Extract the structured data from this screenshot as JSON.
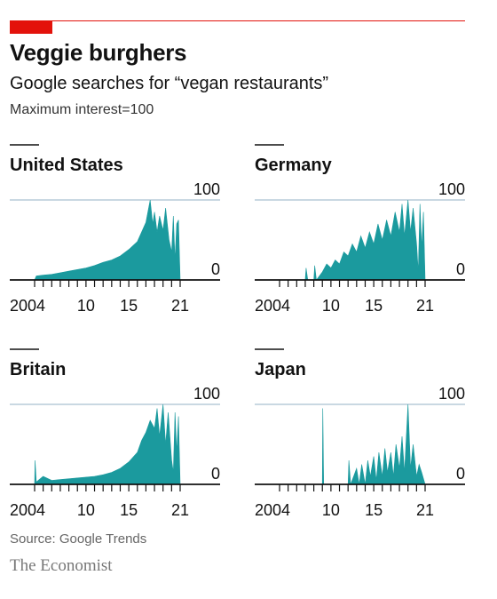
{
  "header": {
    "title": "Veggie burghers",
    "subtitle": "Google searches for “vegan restaurants”",
    "note": "Maximum interest=100"
  },
  "footer": {
    "source": "Source: Google Trends",
    "brand": "The Economist"
  },
  "colors": {
    "accent": "#e3120b",
    "area": "#1b9a9e",
    "gridline": "#a9c1d1",
    "axis": "#121212"
  },
  "chart_data": [
    {
      "type": "area",
      "title": "United States",
      "x_range": [
        2004,
        2021.2
      ],
      "ylim": [
        0,
        100
      ],
      "y_ticks": [
        "100",
        "0"
      ],
      "x_ticks": [
        "2004",
        "10",
        "15",
        "21"
      ],
      "points": [
        [
          2004,
          0
        ],
        [
          2004.2,
          5
        ],
        [
          2005,
          6
        ],
        [
          2006,
          7
        ],
        [
          2007,
          9
        ],
        [
          2008,
          11
        ],
        [
          2009,
          13
        ],
        [
          2010,
          15
        ],
        [
          2011,
          18
        ],
        [
          2012,
          22
        ],
        [
          2013,
          25
        ],
        [
          2014,
          30
        ],
        [
          2015,
          38
        ],
        [
          2016,
          48
        ],
        [
          2016.5,
          60
        ],
        [
          2017,
          72
        ],
        [
          2017.5,
          100
        ],
        [
          2017.8,
          70
        ],
        [
          2018,
          85
        ],
        [
          2018.3,
          60
        ],
        [
          2018.6,
          80
        ],
        [
          2019,
          62
        ],
        [
          2019.3,
          90
        ],
        [
          2019.7,
          50
        ],
        [
          2020,
          35
        ],
        [
          2020.2,
          80
        ],
        [
          2020.4,
          25
        ],
        [
          2020.6,
          70
        ],
        [
          2020.8,
          75
        ],
        [
          2021,
          0
        ]
      ]
    },
    {
      "type": "area",
      "title": "Germany",
      "x_range": [
        2004,
        2021.2
      ],
      "ylim": [
        0,
        100
      ],
      "y_ticks": [
        "100",
        "0"
      ],
      "x_ticks": [
        "2004",
        "10",
        "15",
        "21"
      ],
      "points": [
        [
          2004,
          0
        ],
        [
          2007,
          0
        ],
        [
          2007.1,
          15
        ],
        [
          2007.3,
          0
        ],
        [
          2008,
          0
        ],
        [
          2008.1,
          18
        ],
        [
          2008.3,
          0
        ],
        [
          2009,
          10
        ],
        [
          2009.5,
          20
        ],
        [
          2010,
          15
        ],
        [
          2010.5,
          25
        ],
        [
          2011,
          20
        ],
        [
          2011.5,
          35
        ],
        [
          2012,
          30
        ],
        [
          2012.5,
          45
        ],
        [
          2013,
          35
        ],
        [
          2013.5,
          55
        ],
        [
          2014,
          40
        ],
        [
          2014.5,
          60
        ],
        [
          2015,
          45
        ],
        [
          2015.5,
          70
        ],
        [
          2016,
          50
        ],
        [
          2016.5,
          75
        ],
        [
          2017,
          55
        ],
        [
          2017.5,
          85
        ],
        [
          2018,
          60
        ],
        [
          2018.3,
          95
        ],
        [
          2018.6,
          55
        ],
        [
          2019,
          100
        ],
        [
          2019.3,
          60
        ],
        [
          2019.6,
          90
        ],
        [
          2020,
          45
        ],
        [
          2020.2,
          10
        ],
        [
          2020.4,
          95
        ],
        [
          2020.6,
          40
        ],
        [
          2020.8,
          85
        ],
        [
          2021,
          0
        ]
      ]
    },
    {
      "type": "area",
      "title": "Britain",
      "x_range": [
        2004,
        2021.2
      ],
      "ylim": [
        0,
        100
      ],
      "y_ticks": [
        "100",
        "0"
      ],
      "x_ticks": [
        "2004",
        "10",
        "15",
        "21"
      ],
      "points": [
        [
          2004,
          0
        ],
        [
          2004.05,
          30
        ],
        [
          2004.2,
          3
        ],
        [
          2005,
          10
        ],
        [
          2006,
          5
        ],
        [
          2007,
          6
        ],
        [
          2008,
          7
        ],
        [
          2009,
          8
        ],
        [
          2010,
          9
        ],
        [
          2011,
          10
        ],
        [
          2012,
          12
        ],
        [
          2013,
          15
        ],
        [
          2014,
          20
        ],
        [
          2015,
          28
        ],
        [
          2016,
          40
        ],
        [
          2016.5,
          55
        ],
        [
          2017,
          65
        ],
        [
          2017.5,
          80
        ],
        [
          2018,
          70
        ],
        [
          2018.3,
          95
        ],
        [
          2018.6,
          60
        ],
        [
          2019,
          100
        ],
        [
          2019.3,
          50
        ],
        [
          2019.6,
          90
        ],
        [
          2020,
          30
        ],
        [
          2020.2,
          15
        ],
        [
          2020.4,
          90
        ],
        [
          2020.6,
          40
        ],
        [
          2020.8,
          85
        ],
        [
          2021,
          0
        ]
      ]
    },
    {
      "type": "area",
      "title": "Japan",
      "x_range": [
        2004,
        2021.2
      ],
      "ylim": [
        0,
        100
      ],
      "y_ticks": [
        "100",
        "0"
      ],
      "x_ticks": [
        "2004",
        "10",
        "15",
        "21"
      ],
      "points": [
        [
          2004,
          0
        ],
        [
          2009,
          0
        ],
        [
          2009.05,
          95
        ],
        [
          2009.15,
          0
        ],
        [
          2012,
          0
        ],
        [
          2012.1,
          30
        ],
        [
          2012.3,
          0
        ],
        [
          2013,
          20
        ],
        [
          2013.3,
          0
        ],
        [
          2013.6,
          25
        ],
        [
          2014,
          0
        ],
        [
          2014.3,
          30
        ],
        [
          2014.6,
          10
        ],
        [
          2015,
          35
        ],
        [
          2015.3,
          5
        ],
        [
          2015.6,
          40
        ],
        [
          2016,
          10
        ],
        [
          2016.3,
          45
        ],
        [
          2016.6,
          15
        ],
        [
          2017,
          40
        ],
        [
          2017.3,
          10
        ],
        [
          2017.6,
          50
        ],
        [
          2018,
          20
        ],
        [
          2018.3,
          60
        ],
        [
          2018.6,
          15
        ],
        [
          2019,
          100
        ],
        [
          2019.3,
          20
        ],
        [
          2019.6,
          50
        ],
        [
          2020,
          10
        ],
        [
          2020.3,
          25
        ],
        [
          2020.6,
          15
        ],
        [
          2021,
          0
        ]
      ]
    }
  ]
}
